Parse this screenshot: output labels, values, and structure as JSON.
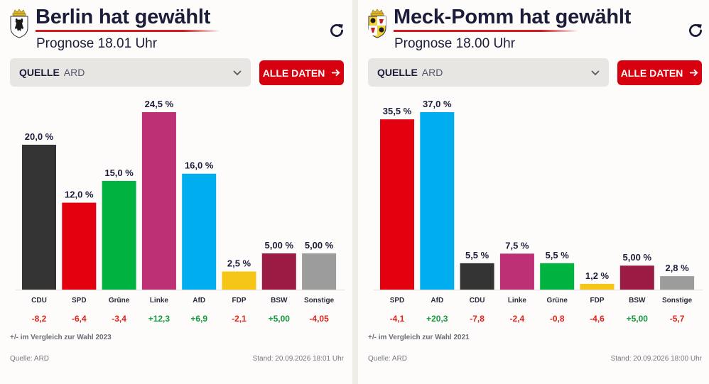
{
  "colors": {
    "title": "#1c1c3b",
    "accent_red": "#d7000f",
    "positive": "#129a3c",
    "negative": "#e2231a",
    "party": {
      "CDU": "#333333",
      "SPD": "#e3000f",
      "Grüne": "#00b341",
      "Linke": "#be3075",
      "AfD": "#00adee",
      "FDP": "#f5c518",
      "BSW": "#9c1b45",
      "Sonstige": "#9c9c9c"
    }
  },
  "widgets": [
    {
      "title": "Berlin hat gewählt",
      "subtitle": "Prognose 18.01 Uhr",
      "crest_icon": "berlin-bear-crest-icon",
      "source_label": "QUELLE",
      "source_value": "ARD",
      "button_label": "ALLE DATEN",
      "compare_note": "+/- im Vergleich zur Wahl 2023",
      "footer_source": "Quelle: ARD",
      "footer_stand": "Stand: 20.09.2026 18:01 Uhr"
    },
    {
      "title": "Meck-Pomm hat gewählt",
      "subtitle": "Prognose 18.00 Uhr",
      "crest_icon": "mecklenburg-vorpommern-crest-icon",
      "source_label": "QUELLE",
      "source_value": "ARD",
      "button_label": "ALLE DATEN",
      "compare_note": "+/- im Vergleich zur Wahl 2021",
      "footer_source": "Quelle: ARD",
      "footer_stand": "Stand: 20.09.2026 18:00 Uhr"
    }
  ],
  "chart_data": [
    {
      "type": "bar",
      "categories": [
        "CDU",
        "SPD",
        "Grüne",
        "Linke",
        "AfD",
        "FDP",
        "BSW",
        "Sonstige"
      ],
      "values": [
        20.0,
        12.0,
        15.0,
        24.5,
        16.0,
        2.5,
        5.0,
        5.0
      ],
      "value_labels": [
        "20,0 %",
        "12,0 %",
        "15,0 %",
        "24,5 %",
        "16,0 %",
        "2,5 %",
        "5,00 %",
        "5,00 %"
      ],
      "changes": [
        -8.2,
        -6.4,
        -3.4,
        12.3,
        6.9,
        -2.1,
        5.0,
        -4.05
      ],
      "change_labels": [
        "-8,2",
        "-6,4",
        "-3,4",
        "+12,3",
        "+6,9",
        "-2,1",
        "+5,00",
        "-4,05"
      ],
      "unit": "%",
      "ylim": [
        0,
        24.5
      ],
      "grid": false,
      "legend": "none"
    },
    {
      "type": "bar",
      "categories": [
        "SPD",
        "AfD",
        "CDU",
        "Linke",
        "Grüne",
        "FDP",
        "BSW",
        "Sonstige"
      ],
      "values": [
        35.5,
        37.0,
        5.5,
        7.5,
        5.5,
        1.2,
        5.0,
        2.8
      ],
      "value_labels": [
        "35,5 %",
        "37,0 %",
        "5,5 %",
        "7,5 %",
        "5,5 %",
        "1,2 %",
        "5,00 %",
        "2,8 %"
      ],
      "changes": [
        -4.1,
        20.3,
        -7.8,
        -2.4,
        -0.8,
        -4.6,
        5.0,
        -5.7
      ],
      "change_labels": [
        "-4,1",
        "+20,3",
        "-7,8",
        "-2,4",
        "-0,8",
        "-4,6",
        "+5,00",
        "-5,7"
      ],
      "unit": "%",
      "ylim": [
        0,
        37.0
      ],
      "grid": false,
      "legend": "none"
    }
  ]
}
